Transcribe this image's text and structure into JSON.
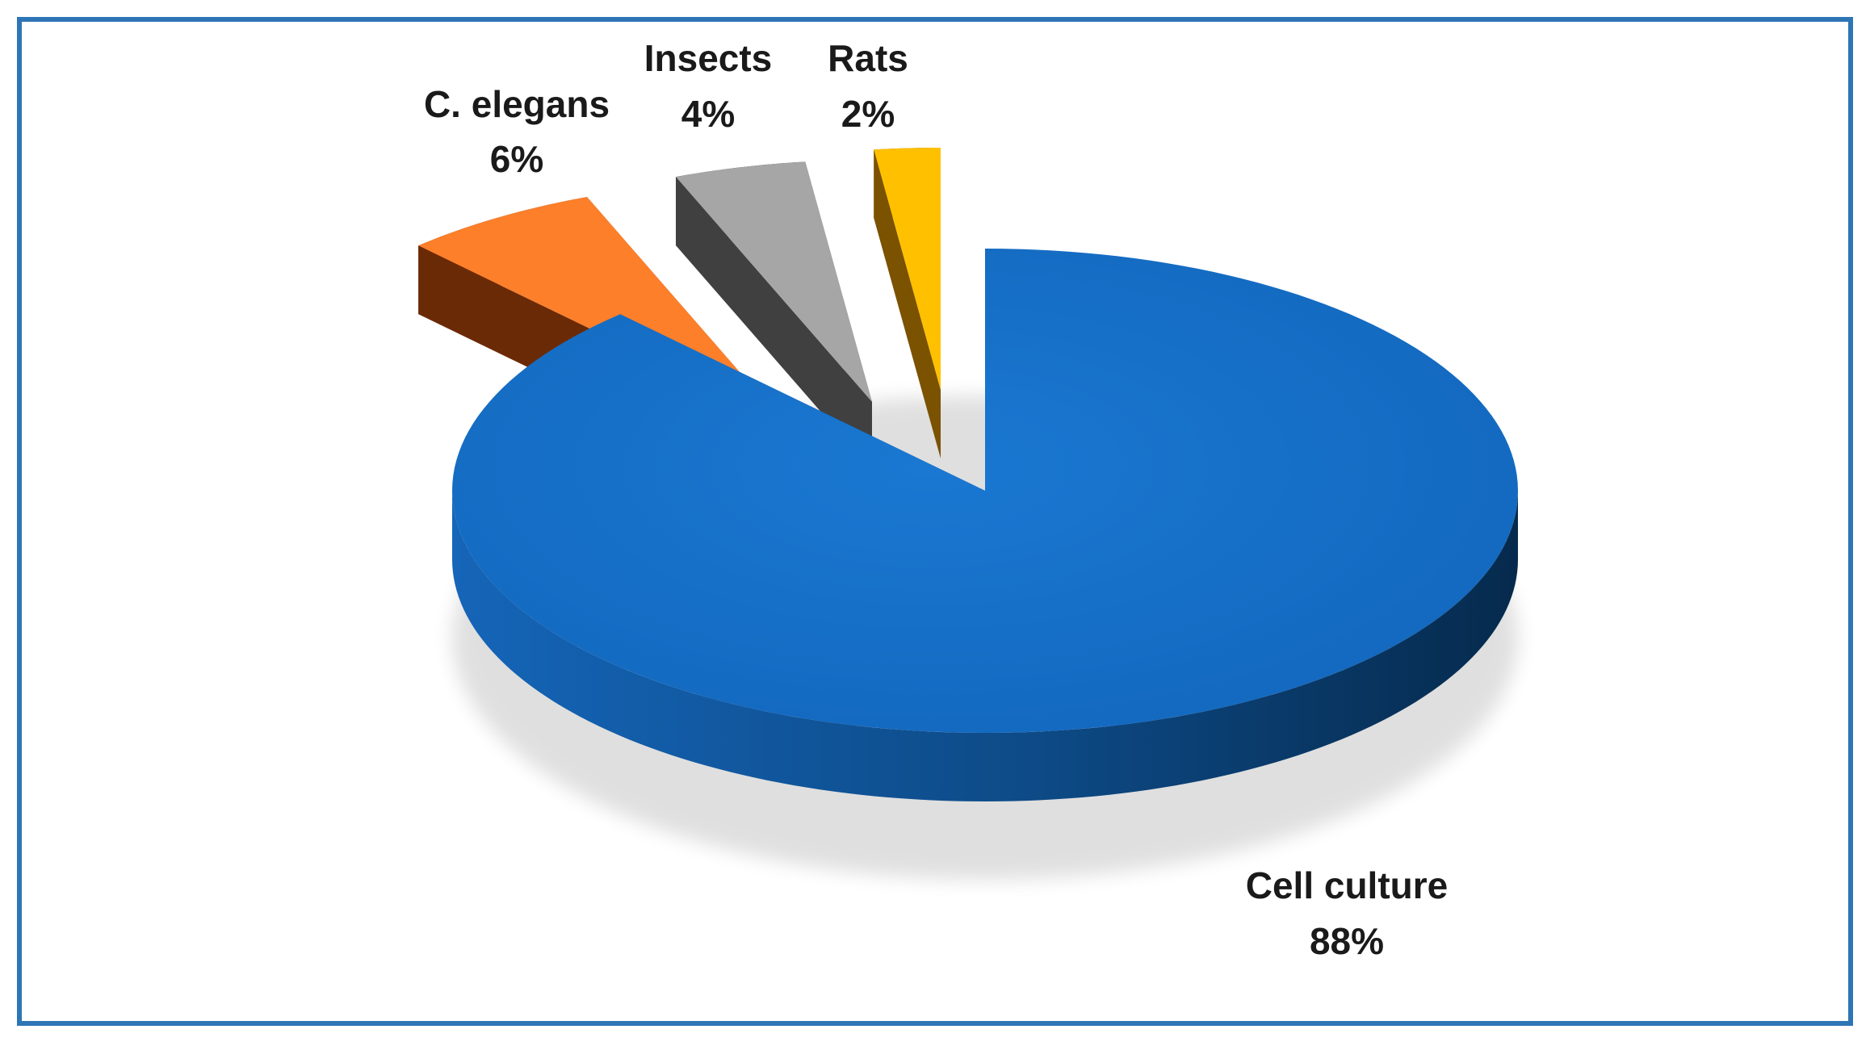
{
  "chart_data": {
    "type": "pie",
    "style": "3d-exploded",
    "slices": [
      {
        "name": "Cell culture",
        "value": 88,
        "label": "88%",
        "color": "#1570c8",
        "side_color": "#0d4a86",
        "exploded": false
      },
      {
        "name": "C. elegans",
        "value": 6,
        "label": "6%",
        "color": "#fd7f2a",
        "side_color": "#6b2a06",
        "exploded": true
      },
      {
        "name": "Insects",
        "value": 4,
        "label": "4%",
        "color": "#a6a6a6",
        "side_color": "#404040",
        "exploded": true
      },
      {
        "name": "Rats",
        "value": 2,
        "label": "2%",
        "color": "#ffc000",
        "side_color": "#7a5200",
        "exploded": true
      }
    ],
    "title": "",
    "legend": "none",
    "frame_color": "#2e75b6"
  }
}
